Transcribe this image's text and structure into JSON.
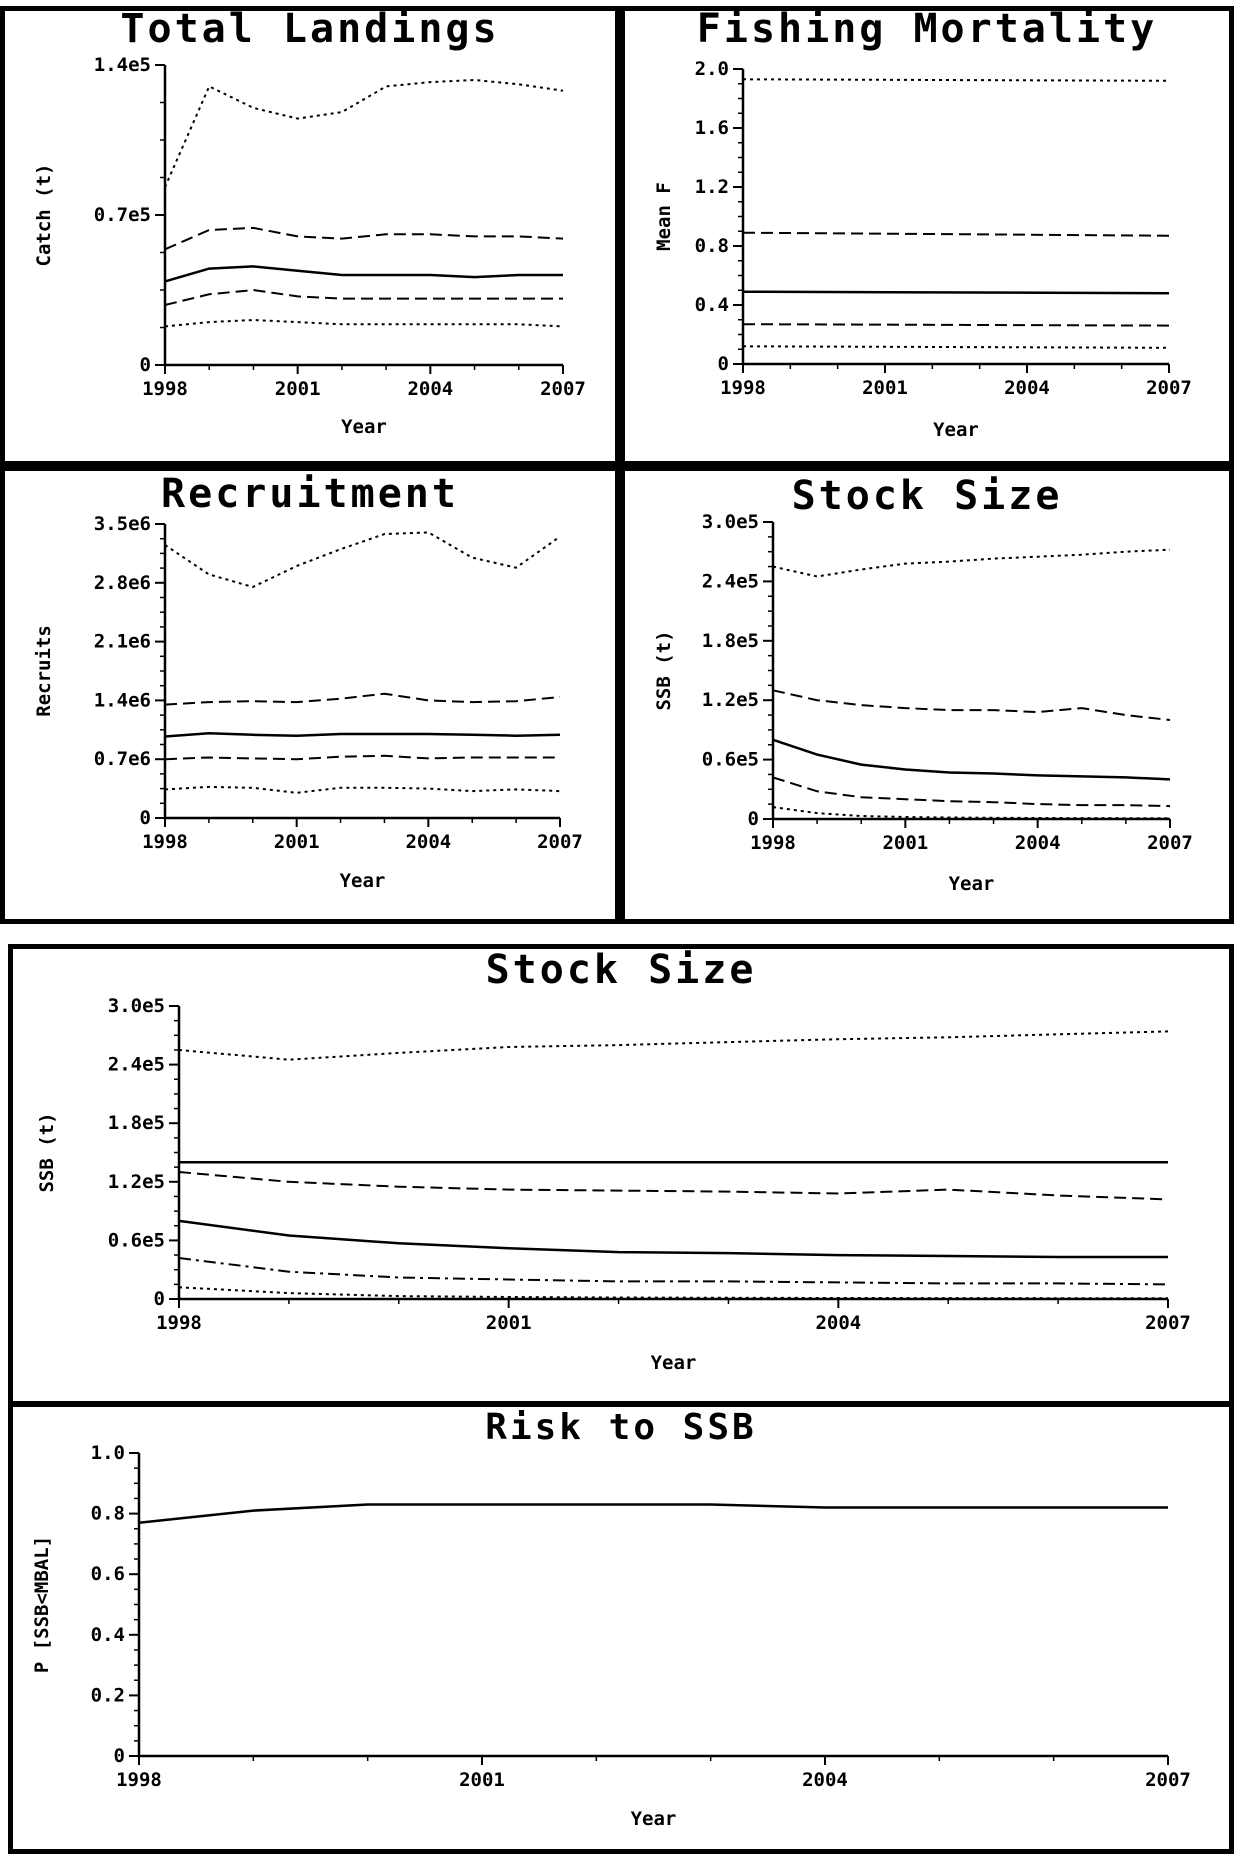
{
  "chart_data": [
    {
      "id": "landings",
      "type": "line",
      "title": "Total Landings",
      "xlabel": "Year",
      "ylabel": "Catch (t)",
      "xlim": [
        1998,
        2007
      ],
      "ylim": [
        0,
        140000
      ],
      "xticks": [
        1998,
        2001,
        2004,
        2007
      ],
      "xtick_labels": [
        "1998",
        "2001",
        "2004",
        "2007"
      ],
      "yticks": [
        0,
        70000,
        140000
      ],
      "ytick_labels": [
        "0",
        "0.7e5",
        "1.4e5"
      ],
      "x": [
        1998,
        1999,
        2000,
        2001,
        2002,
        2003,
        2004,
        2005,
        2006,
        2007
      ],
      "series": [
        {
          "style": "dotted",
          "values": [
            83000,
            130000,
            120000,
            115000,
            118000,
            130000,
            132000,
            133000,
            131000,
            128000
          ]
        },
        {
          "style": "dashed",
          "values": [
            54000,
            63000,
            64000,
            60000,
            59000,
            61000,
            61000,
            60000,
            60000,
            59000
          ]
        },
        {
          "style": "solid",
          "values": [
            39000,
            45000,
            46000,
            44000,
            42000,
            42000,
            42000,
            41000,
            42000,
            42000
          ]
        },
        {
          "style": "dashed",
          "values": [
            28000,
            33000,
            35000,
            32000,
            31000,
            31000,
            31000,
            31000,
            31000,
            31000
          ]
        },
        {
          "style": "dotted",
          "values": [
            18000,
            20000,
            21000,
            20000,
            19000,
            19000,
            19000,
            19000,
            19000,
            18000
          ]
        }
      ]
    },
    {
      "id": "mortality",
      "type": "line",
      "title": "Fishing Mortality",
      "xlabel": "Year",
      "ylabel": "Mean F",
      "xlim": [
        1998,
        2007
      ],
      "ylim": [
        0,
        2.0
      ],
      "xticks": [
        1998,
        2001,
        2004,
        2007
      ],
      "xtick_labels": [
        "1998",
        "2001",
        "2004",
        "2007"
      ],
      "yticks": [
        0,
        0.4,
        0.8,
        1.2,
        1.6,
        2.0
      ],
      "ytick_labels": [
        "0",
        "0.4",
        "0.8",
        "1.2",
        "1.6",
        "2.0"
      ],
      "x": [
        1998,
        2007
      ],
      "series": [
        {
          "style": "dotted",
          "values": [
            1.93,
            1.92
          ]
        },
        {
          "style": "dashed",
          "values": [
            0.89,
            0.87
          ]
        },
        {
          "style": "solid",
          "values": [
            0.49,
            0.48
          ]
        },
        {
          "style": "dashed",
          "values": [
            0.27,
            0.26
          ]
        },
        {
          "style": "dotted",
          "values": [
            0.12,
            0.11
          ]
        }
      ]
    },
    {
      "id": "recruitment",
      "type": "line",
      "title": "Recruitment",
      "xlabel": "Year",
      "ylabel": "Recruits",
      "xlim": [
        1998,
        2007
      ],
      "ylim": [
        0,
        3500000
      ],
      "xticks": [
        1998,
        2001,
        2004,
        2007
      ],
      "xtick_labels": [
        "1998",
        "2001",
        "2004",
        "2007"
      ],
      "yticks": [
        0,
        700000,
        1400000,
        2100000,
        2800000,
        3500000
      ],
      "ytick_labels": [
        "0",
        "0.7e6",
        "1.4e6",
        "2.1e6",
        "2.8e6",
        "3.5e6"
      ],
      "x": [
        1998,
        1999,
        2000,
        2001,
        2002,
        2003,
        2004,
        2005,
        2006,
        2007
      ],
      "series": [
        {
          "style": "dotted",
          "values": [
            3250000,
            2900000,
            2750000,
            3000000,
            3200000,
            3380000,
            3400000,
            3100000,
            2980000,
            3350000
          ]
        },
        {
          "style": "dashed",
          "values": [
            1350000,
            1380000,
            1390000,
            1380000,
            1420000,
            1480000,
            1400000,
            1380000,
            1390000,
            1440000
          ]
        },
        {
          "style": "solid",
          "values": [
            970000,
            1010000,
            990000,
            980000,
            1000000,
            1000000,
            1000000,
            990000,
            980000,
            990000
          ]
        },
        {
          "style": "dashed",
          "values": [
            700000,
            720000,
            710000,
            700000,
            730000,
            740000,
            710000,
            720000,
            720000,
            720000
          ]
        },
        {
          "style": "dotted",
          "values": [
            340000,
            370000,
            360000,
            300000,
            360000,
            360000,
            350000,
            320000,
            340000,
            320000
          ]
        }
      ]
    },
    {
      "id": "stock_small",
      "type": "line",
      "title": "Stock Size",
      "xlabel": "Year",
      "ylabel": "SSB (t)",
      "xlim": [
        1998,
        2007
      ],
      "ylim": [
        0,
        300000
      ],
      "xticks": [
        1998,
        2001,
        2004,
        2007
      ],
      "xtick_labels": [
        "1998",
        "2001",
        "2004",
        "2007"
      ],
      "yticks": [
        0,
        60000,
        120000,
        180000,
        240000,
        300000
      ],
      "ytick_labels": [
        "0",
        "0.6e5",
        "1.2e5",
        "1.8e5",
        "2.4e5",
        "3.0e5"
      ],
      "x": [
        1998,
        1999,
        2000,
        2001,
        2002,
        2003,
        2004,
        2005,
        2006,
        2007
      ],
      "series": [
        {
          "style": "dotted",
          "values": [
            255000,
            245000,
            252000,
            258000,
            260000,
            263000,
            265000,
            267000,
            270000,
            272000
          ]
        },
        {
          "style": "dashed",
          "values": [
            130000,
            120000,
            115000,
            112000,
            110000,
            110000,
            108000,
            112000,
            105000,
            100000
          ]
        },
        {
          "style": "solid",
          "values": [
            80000,
            65000,
            55000,
            50000,
            47000,
            46000,
            44000,
            43000,
            42000,
            40000
          ]
        },
        {
          "style": "dashed",
          "values": [
            42000,
            28000,
            22000,
            20000,
            18000,
            17000,
            15000,
            14000,
            14000,
            13000
          ]
        },
        {
          "style": "dotted",
          "values": [
            12000,
            6000,
            3000,
            2000,
            1500,
            1200,
            1000,
            900,
            800,
            700
          ]
        }
      ]
    },
    {
      "id": "stock_large",
      "type": "line",
      "title": "Stock Size",
      "xlabel": "Year",
      "ylabel": "SSB (t)",
      "xlim": [
        1998,
        2007
      ],
      "ylim": [
        0,
        300000
      ],
      "xticks": [
        1998,
        2001,
        2004,
        2007
      ],
      "xtick_labels": [
        "1998",
        "2001",
        "2004",
        "2007"
      ],
      "yticks": [
        0,
        60000,
        120000,
        180000,
        240000,
        300000
      ],
      "ytick_labels": [
        "0",
        "0.6e5",
        "1.2e5",
        "1.8e5",
        "2.4e5",
        "3.0e5"
      ],
      "x": [
        1998,
        1999,
        2000,
        2001,
        2002,
        2003,
        2004,
        2005,
        2006,
        2007
      ],
      "series": [
        {
          "style": "dotted",
          "values": [
            255000,
            245000,
            252000,
            258000,
            260000,
            263000,
            266000,
            268000,
            271000,
            274000
          ]
        },
        {
          "style": "solid",
          "values": [
            140000,
            140000,
            140000,
            140000,
            140000,
            140000,
            140000,
            140000,
            140000,
            140000
          ]
        },
        {
          "style": "dashed",
          "values": [
            130000,
            120000,
            115000,
            112000,
            111000,
            110000,
            108000,
            112000,
            106000,
            102000
          ]
        },
        {
          "style": "solid",
          "values": [
            80000,
            65000,
            57000,
            52000,
            48000,
            47000,
            45000,
            44000,
            43000,
            43000
          ]
        },
        {
          "style": "dashdot",
          "values": [
            42000,
            28000,
            22000,
            20000,
            18000,
            18000,
            17000,
            16000,
            16000,
            15000
          ]
        },
        {
          "style": "dotted",
          "values": [
            12000,
            6000,
            3000,
            2000,
            1500,
            1200,
            1000,
            900,
            800,
            700
          ]
        }
      ]
    },
    {
      "id": "risk",
      "type": "line",
      "title": "Risk to SSB",
      "xlabel": "Year",
      "ylabel": "P [SSB<MBAL]",
      "xlim": [
        1998,
        2007
      ],
      "ylim": [
        0,
        1.0
      ],
      "xticks": [
        1998,
        2001,
        2004,
        2007
      ],
      "xtick_labels": [
        "1998",
        "2001",
        "2004",
        "2007"
      ],
      "yticks": [
        0,
        0.2,
        0.4,
        0.6,
        0.8,
        1.0
      ],
      "ytick_labels": [
        "0",
        "0.2",
        "0.4",
        "0.6",
        "0.8",
        "1.0"
      ],
      "x": [
        1998,
        1999,
        2000,
        2001,
        2002,
        2003,
        2004,
        2005,
        2006,
        2007
      ],
      "series": [
        {
          "style": "solid",
          "values": [
            0.77,
            0.81,
            0.83,
            0.83,
            0.83,
            0.83,
            0.82,
            0.82,
            0.82,
            0.82
          ]
        }
      ]
    }
  ]
}
